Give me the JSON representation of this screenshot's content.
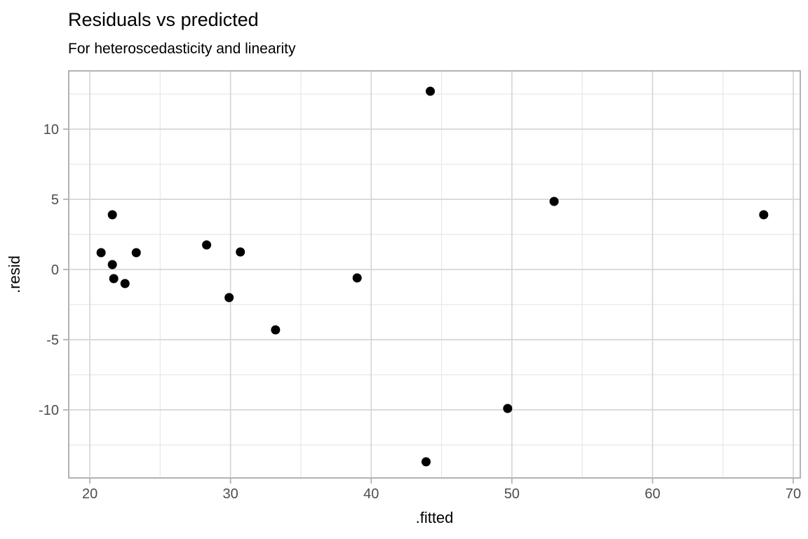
{
  "chart": {
    "title": "Residuals vs predicted",
    "subtitle": "For heteroscedasticity and linearity"
  },
  "chart_data": {
    "type": "scatter",
    "title": "Residuals vs predicted",
    "subtitle": "For heteroscedasticity and linearity",
    "xlabel": ".fitted",
    "ylabel": ".resid",
    "xlim": [
      18.5,
      70.5
    ],
    "ylim": [
      -14.85,
      14.15
    ],
    "x_major_ticks": [
      20,
      30,
      40,
      50,
      60,
      70
    ],
    "y_major_ticks": [
      -10,
      -5,
      0,
      5,
      10
    ],
    "x_minor_ticks": [
      25,
      35,
      45,
      55,
      65
    ],
    "y_minor_ticks": [
      -12.5,
      -7.5,
      -2.5,
      2.5,
      7.5,
      12.5
    ],
    "grid": true,
    "legend": "none",
    "points": [
      [
        20.8,
        1.2
      ],
      [
        21.6,
        3.9
      ],
      [
        21.6,
        0.35
      ],
      [
        21.7,
        -0.65
      ],
      [
        22.5,
        -1.0
      ],
      [
        23.3,
        1.2
      ],
      [
        28.3,
        1.75
      ],
      [
        29.9,
        -2.0
      ],
      [
        30.7,
        1.25
      ],
      [
        33.2,
        -4.3
      ],
      [
        39.0,
        -0.6
      ],
      [
        43.9,
        -13.7
      ],
      [
        44.2,
        12.7
      ],
      [
        49.7,
        -9.9
      ],
      [
        53.0,
        4.85
      ],
      [
        67.9,
        3.9
      ]
    ],
    "point_color": "#000000",
    "colors": {
      "panel_background": "#ffffff",
      "panel_border": "#b3b3b3",
      "grid_major": "#d6d6d6",
      "grid_minor": "#e7e7e7",
      "tick_mark": "#b3b3b3",
      "tick_label": "#4d4d4d",
      "axis_title": "#000000"
    }
  }
}
